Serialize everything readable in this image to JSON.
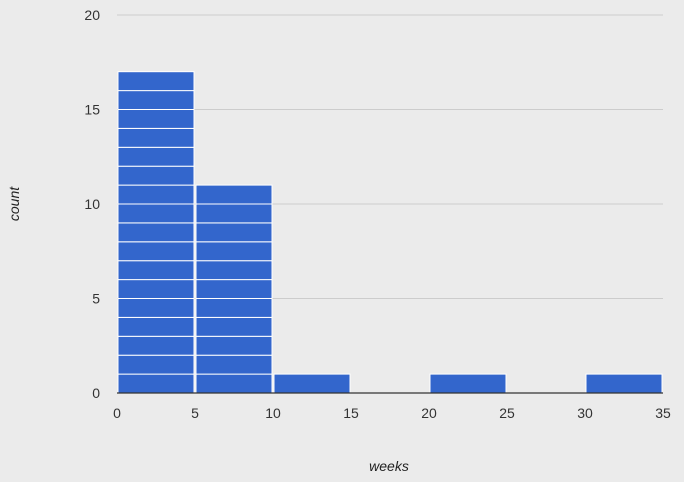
{
  "chart_data": {
    "type": "bar",
    "subtype": "histogram",
    "xlabel": "weeks",
    "ylabel": "count",
    "xlim": [
      0,
      35
    ],
    "ylim": [
      0,
      20
    ],
    "x_ticks": [
      "0",
      "5",
      "10",
      "15",
      "20",
      "25",
      "30",
      "35"
    ],
    "y_ticks": [
      "0",
      "5",
      "10",
      "15",
      "20"
    ],
    "bins": [
      {
        "start": 0,
        "end": 5,
        "count": 17
      },
      {
        "start": 5,
        "end": 10,
        "count": 11
      },
      {
        "start": 10,
        "end": 15,
        "count": 1
      },
      {
        "start": 15,
        "end": 20,
        "count": 0
      },
      {
        "start": 20,
        "end": 25,
        "count": 1
      },
      {
        "start": 25,
        "end": 30,
        "count": 0
      },
      {
        "start": 30,
        "end": 35,
        "count": 1
      }
    ],
    "bar_color": "#3366cc",
    "unit_separator_color": "#ffffff",
    "gridline_color": "#cccccc",
    "background_color": "#ebebeb",
    "grid": true,
    "legend": "none"
  }
}
